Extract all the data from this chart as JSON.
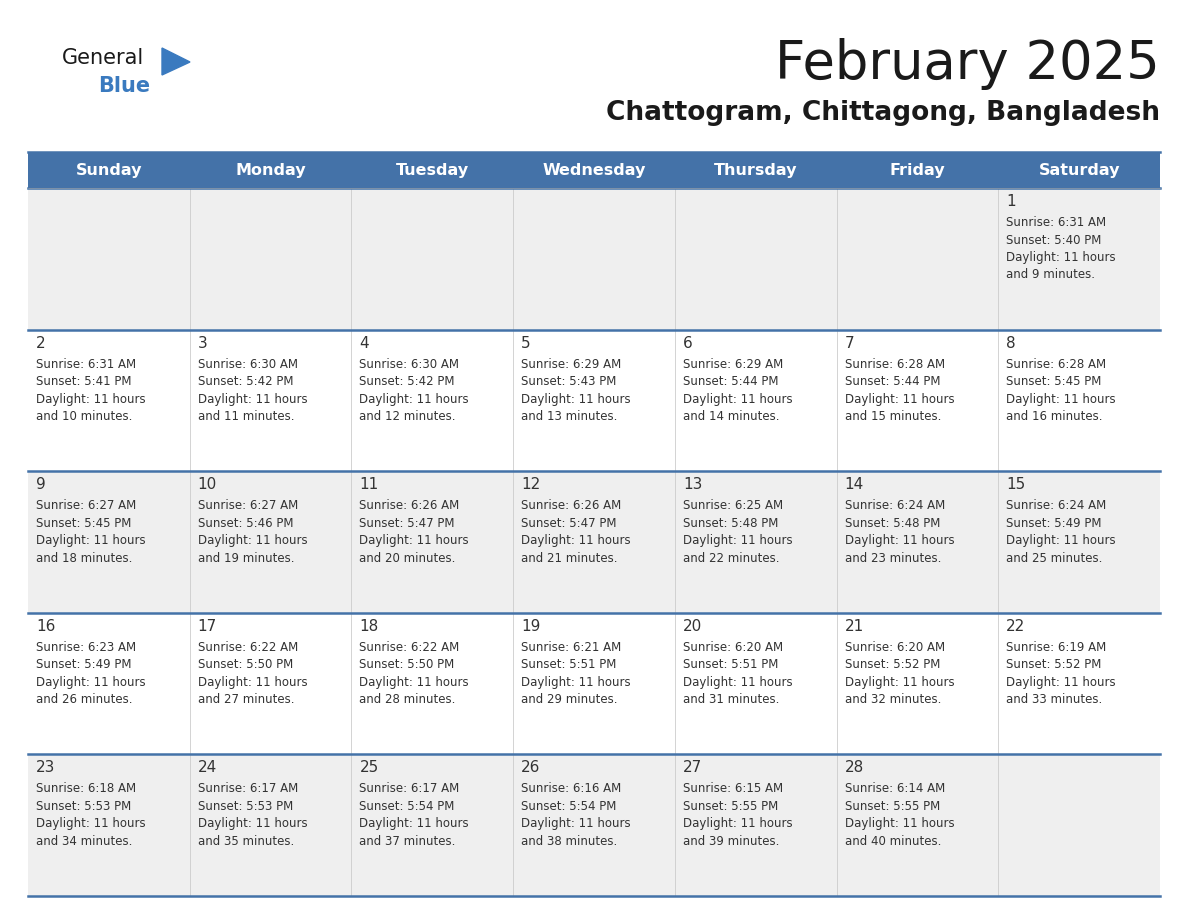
{
  "title": "February 2025",
  "subtitle": "Chattogram, Chittagong, Bangladesh",
  "days_of_week": [
    "Sunday",
    "Monday",
    "Tuesday",
    "Wednesday",
    "Thursday",
    "Friday",
    "Saturday"
  ],
  "header_bg": "#4472a8",
  "header_text": "#ffffff",
  "row_bg_odd": "#efefef",
  "row_bg_even": "#ffffff",
  "cell_text_color": "#333333",
  "day_num_color": "#333333",
  "border_color": "#4472a8",
  "title_color": "#1a1a1a",
  "subtitle_color": "#1a1a1a",
  "logo_general_color": "#1a1a1a",
  "logo_blue_color": "#3a7abf",
  "calendar_data": [
    [
      null,
      null,
      null,
      null,
      null,
      null,
      {
        "day": "1",
        "sunrise": "6:31 AM",
        "sunset": "5:40 PM",
        "daylight_h": "11 hours",
        "daylight_m": "and 9 minutes."
      }
    ],
    [
      {
        "day": "2",
        "sunrise": "6:31 AM",
        "sunset": "5:41 PM",
        "daylight_h": "11 hours",
        "daylight_m": "and 10 minutes."
      },
      {
        "day": "3",
        "sunrise": "6:30 AM",
        "sunset": "5:42 PM",
        "daylight_h": "11 hours",
        "daylight_m": "and 11 minutes."
      },
      {
        "day": "4",
        "sunrise": "6:30 AM",
        "sunset": "5:42 PM",
        "daylight_h": "11 hours",
        "daylight_m": "and 12 minutes."
      },
      {
        "day": "5",
        "sunrise": "6:29 AM",
        "sunset": "5:43 PM",
        "daylight_h": "11 hours",
        "daylight_m": "and 13 minutes."
      },
      {
        "day": "6",
        "sunrise": "6:29 AM",
        "sunset": "5:44 PM",
        "daylight_h": "11 hours",
        "daylight_m": "and 14 minutes."
      },
      {
        "day": "7",
        "sunrise": "6:28 AM",
        "sunset": "5:44 PM",
        "daylight_h": "11 hours",
        "daylight_m": "and 15 minutes."
      },
      {
        "day": "8",
        "sunrise": "6:28 AM",
        "sunset": "5:45 PM",
        "daylight_h": "11 hours",
        "daylight_m": "and 16 minutes."
      }
    ],
    [
      {
        "day": "9",
        "sunrise": "6:27 AM",
        "sunset": "5:45 PM",
        "daylight_h": "11 hours",
        "daylight_m": "and 18 minutes."
      },
      {
        "day": "10",
        "sunrise": "6:27 AM",
        "sunset": "5:46 PM",
        "daylight_h": "11 hours",
        "daylight_m": "and 19 minutes."
      },
      {
        "day": "11",
        "sunrise": "6:26 AM",
        "sunset": "5:47 PM",
        "daylight_h": "11 hours",
        "daylight_m": "and 20 minutes."
      },
      {
        "day": "12",
        "sunrise": "6:26 AM",
        "sunset": "5:47 PM",
        "daylight_h": "11 hours",
        "daylight_m": "and 21 minutes."
      },
      {
        "day": "13",
        "sunrise": "6:25 AM",
        "sunset": "5:48 PM",
        "daylight_h": "11 hours",
        "daylight_m": "and 22 minutes."
      },
      {
        "day": "14",
        "sunrise": "6:24 AM",
        "sunset": "5:48 PM",
        "daylight_h": "11 hours",
        "daylight_m": "and 23 minutes."
      },
      {
        "day": "15",
        "sunrise": "6:24 AM",
        "sunset": "5:49 PM",
        "daylight_h": "11 hours",
        "daylight_m": "and 25 minutes."
      }
    ],
    [
      {
        "day": "16",
        "sunrise": "6:23 AM",
        "sunset": "5:49 PM",
        "daylight_h": "11 hours",
        "daylight_m": "and 26 minutes."
      },
      {
        "day": "17",
        "sunrise": "6:22 AM",
        "sunset": "5:50 PM",
        "daylight_h": "11 hours",
        "daylight_m": "and 27 minutes."
      },
      {
        "day": "18",
        "sunrise": "6:22 AM",
        "sunset": "5:50 PM",
        "daylight_h": "11 hours",
        "daylight_m": "and 28 minutes."
      },
      {
        "day": "19",
        "sunrise": "6:21 AM",
        "sunset": "5:51 PM",
        "daylight_h": "11 hours",
        "daylight_m": "and 29 minutes."
      },
      {
        "day": "20",
        "sunrise": "6:20 AM",
        "sunset": "5:51 PM",
        "daylight_h": "11 hours",
        "daylight_m": "and 31 minutes."
      },
      {
        "day": "21",
        "sunrise": "6:20 AM",
        "sunset": "5:52 PM",
        "daylight_h": "11 hours",
        "daylight_m": "and 32 minutes."
      },
      {
        "day": "22",
        "sunrise": "6:19 AM",
        "sunset": "5:52 PM",
        "daylight_h": "11 hours",
        "daylight_m": "and 33 minutes."
      }
    ],
    [
      {
        "day": "23",
        "sunrise": "6:18 AM",
        "sunset": "5:53 PM",
        "daylight_h": "11 hours",
        "daylight_m": "and 34 minutes."
      },
      {
        "day": "24",
        "sunrise": "6:17 AM",
        "sunset": "5:53 PM",
        "daylight_h": "11 hours",
        "daylight_m": "and 35 minutes."
      },
      {
        "day": "25",
        "sunrise": "6:17 AM",
        "sunset": "5:54 PM",
        "daylight_h": "11 hours",
        "daylight_m": "and 37 minutes."
      },
      {
        "day": "26",
        "sunrise": "6:16 AM",
        "sunset": "5:54 PM",
        "daylight_h": "11 hours",
        "daylight_m": "and 38 minutes."
      },
      {
        "day": "27",
        "sunrise": "6:15 AM",
        "sunset": "5:55 PM",
        "daylight_h": "11 hours",
        "daylight_m": "and 39 minutes."
      },
      {
        "day": "28",
        "sunrise": "6:14 AM",
        "sunset": "5:55 PM",
        "daylight_h": "11 hours",
        "daylight_m": "and 40 minutes."
      },
      null
    ]
  ],
  "figsize": [
    11.88,
    9.18
  ],
  "dpi": 100
}
